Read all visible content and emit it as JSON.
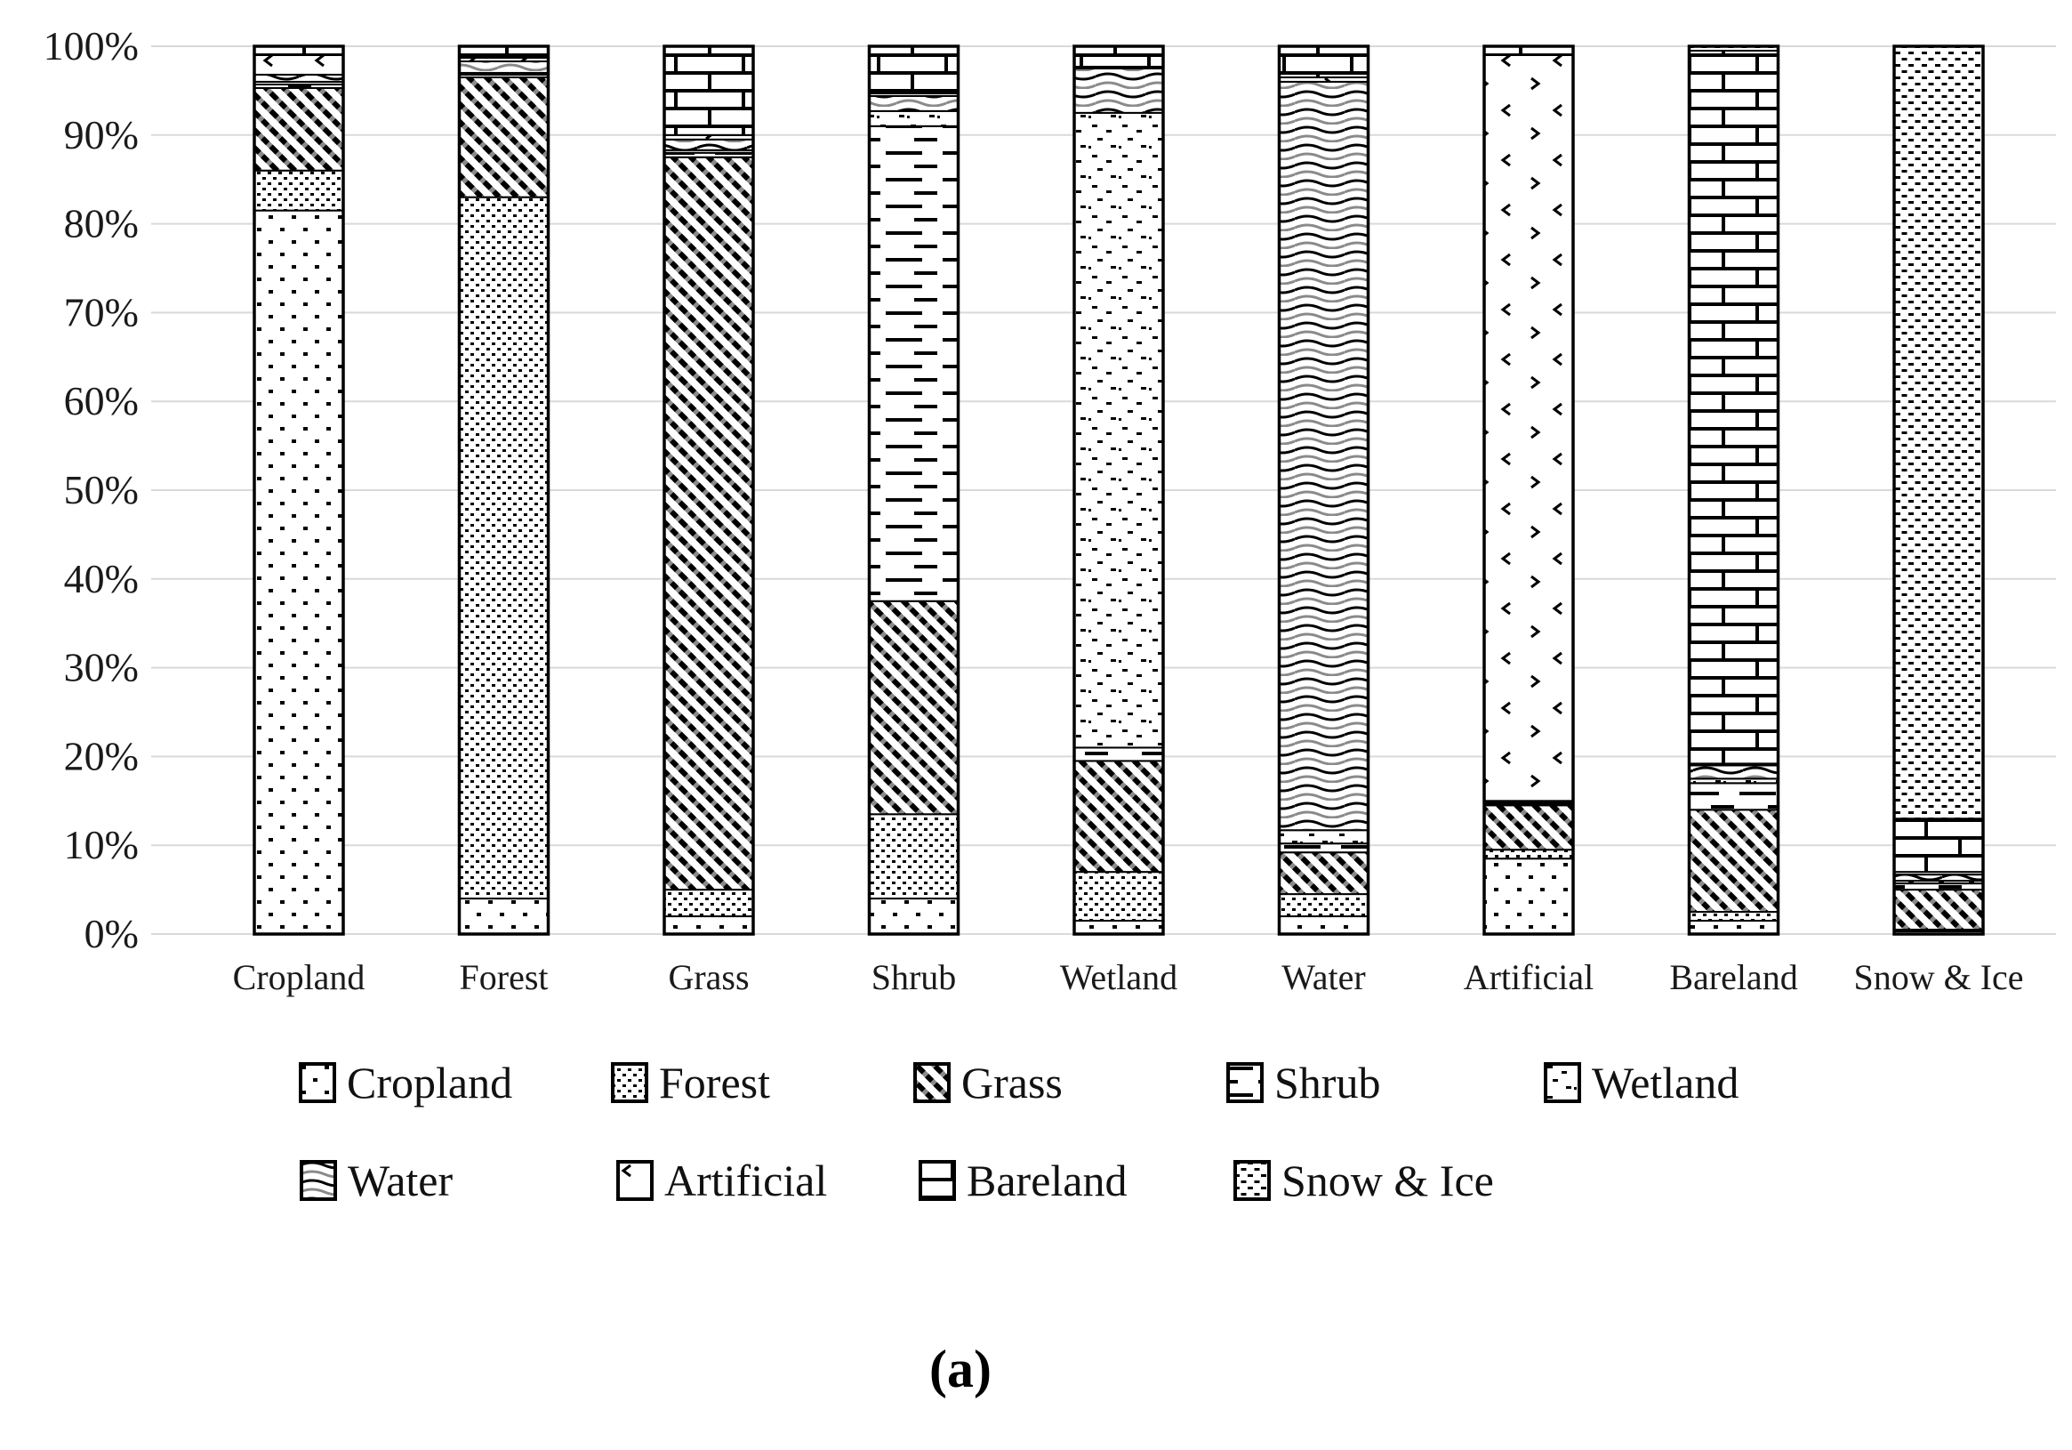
{
  "figure": {
    "caption": "(a)"
  },
  "axes": {
    "y_ticks": [
      "100%",
      "90%",
      "80%",
      "70%",
      "60%",
      "50%",
      "40%",
      "30%",
      "20%",
      "10%",
      "0%"
    ]
  },
  "chart_data": {
    "type": "bar",
    "subtype": "100-percent-stacked-column",
    "title": "",
    "xlabel": "",
    "ylabel": "",
    "ylim": [
      0,
      100
    ],
    "grid": true,
    "legend_position": "bottom",
    "categories": [
      "Cropland",
      "Forest",
      "Grass",
      "Shrub",
      "Wetland",
      "Water",
      "Artificial",
      "Bareland",
      "Snow & Ice"
    ],
    "series": [
      {
        "name": "Cropland",
        "key": "cropland",
        "pattern": "sparse-dot-columns",
        "values": [
          81.5,
          4.0,
          2.0,
          4.0,
          1.5,
          2.0,
          8.5,
          1.5,
          0.3
        ]
      },
      {
        "name": "Forest",
        "key": "forest",
        "pattern": "dense-stipple",
        "values": [
          4.5,
          79.0,
          3.0,
          9.5,
          5.5,
          2.5,
          1.0,
          1.0,
          0.2
        ]
      },
      {
        "name": "Grass",
        "key": "grass",
        "pattern": "diagonal-hatch",
        "values": [
          9.3,
          13.5,
          82.5,
          24.0,
          12.5,
          4.7,
          5.0,
          11.5,
          4.5
        ]
      },
      {
        "name": "Shrub",
        "key": "shrub",
        "pattern": "horizontal-dashes",
        "values": [
          0.4,
          0.3,
          0.5,
          53.5,
          1.5,
          1.0,
          0.2,
          3.0,
          0.7
        ]
      },
      {
        "name": "Wetland",
        "key": "wetland",
        "pattern": "speckle",
        "values": [
          0.3,
          0.2,
          0.3,
          1.7,
          71.5,
          1.5,
          0.1,
          0.5,
          0.3
        ]
      },
      {
        "name": "Water",
        "key": "water",
        "pattern": "waves",
        "values": [
          0.8,
          1.3,
          1.2,
          1.7,
          5.0,
          84.3,
          0.2,
          1.5,
          0.7
        ]
      },
      {
        "name": "Artificial",
        "key": "artificial",
        "pattern": "chevron-marks",
        "values": [
          2.2,
          0.4,
          0.5,
          0.3,
          0.2,
          0.5,
          84.0,
          0.2,
          0.3
        ]
      },
      {
        "name": "Bareland",
        "key": "bareland",
        "pattern": "brick",
        "values": [
          1.0,
          1.3,
          10.0,
          5.3,
          2.3,
          3.5,
          1.0,
          80.3,
          6.0
        ]
      },
      {
        "name": "Snow & Ice",
        "key": "snow_ice",
        "pattern": "dotted-grid",
        "values": [
          0.0,
          0.0,
          0.0,
          0.0,
          0.0,
          0.0,
          0.0,
          0.5,
          87.0
        ]
      }
    ]
  },
  "colors": {
    "bar_outline": "#000000",
    "gridline": "#d9d9d9",
    "text": "#1a1a1a",
    "pattern_fg": "#000000",
    "pattern_bg": "#ffffff"
  }
}
